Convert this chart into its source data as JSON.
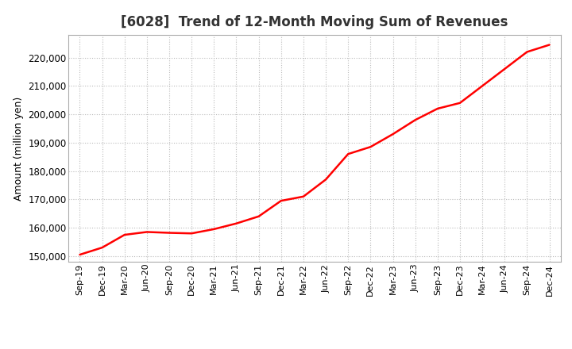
{
  "title": "[6028]  Trend of 12-Month Moving Sum of Revenues",
  "ylabel": "Amount (million yen)",
  "line_color": "#FF0000",
  "background_color": "#FFFFFF",
  "plot_bg_color": "#FFFFFF",
  "grid_color": "#BBBBBB",
  "ylim": [
    148000,
    228000
  ],
  "yticks": [
    150000,
    160000,
    170000,
    180000,
    190000,
    200000,
    210000,
    220000
  ],
  "x_labels": [
    "Sep-19",
    "Dec-19",
    "Mar-20",
    "Jun-20",
    "Sep-20",
    "Dec-20",
    "Mar-21",
    "Jun-21",
    "Sep-21",
    "Dec-21",
    "Mar-22",
    "Jun-22",
    "Sep-22",
    "Dec-22",
    "Mar-23",
    "Jun-23",
    "Sep-23",
    "Dec-23",
    "Mar-24",
    "Jun-24",
    "Sep-24",
    "Dec-24"
  ],
  "data": [
    150500,
    153000,
    157500,
    158500,
    158200,
    158000,
    159500,
    161500,
    164000,
    169500,
    171000,
    177000,
    186000,
    188500,
    193000,
    198000,
    202000,
    204000,
    210000,
    216000,
    222000,
    224500
  ]
}
